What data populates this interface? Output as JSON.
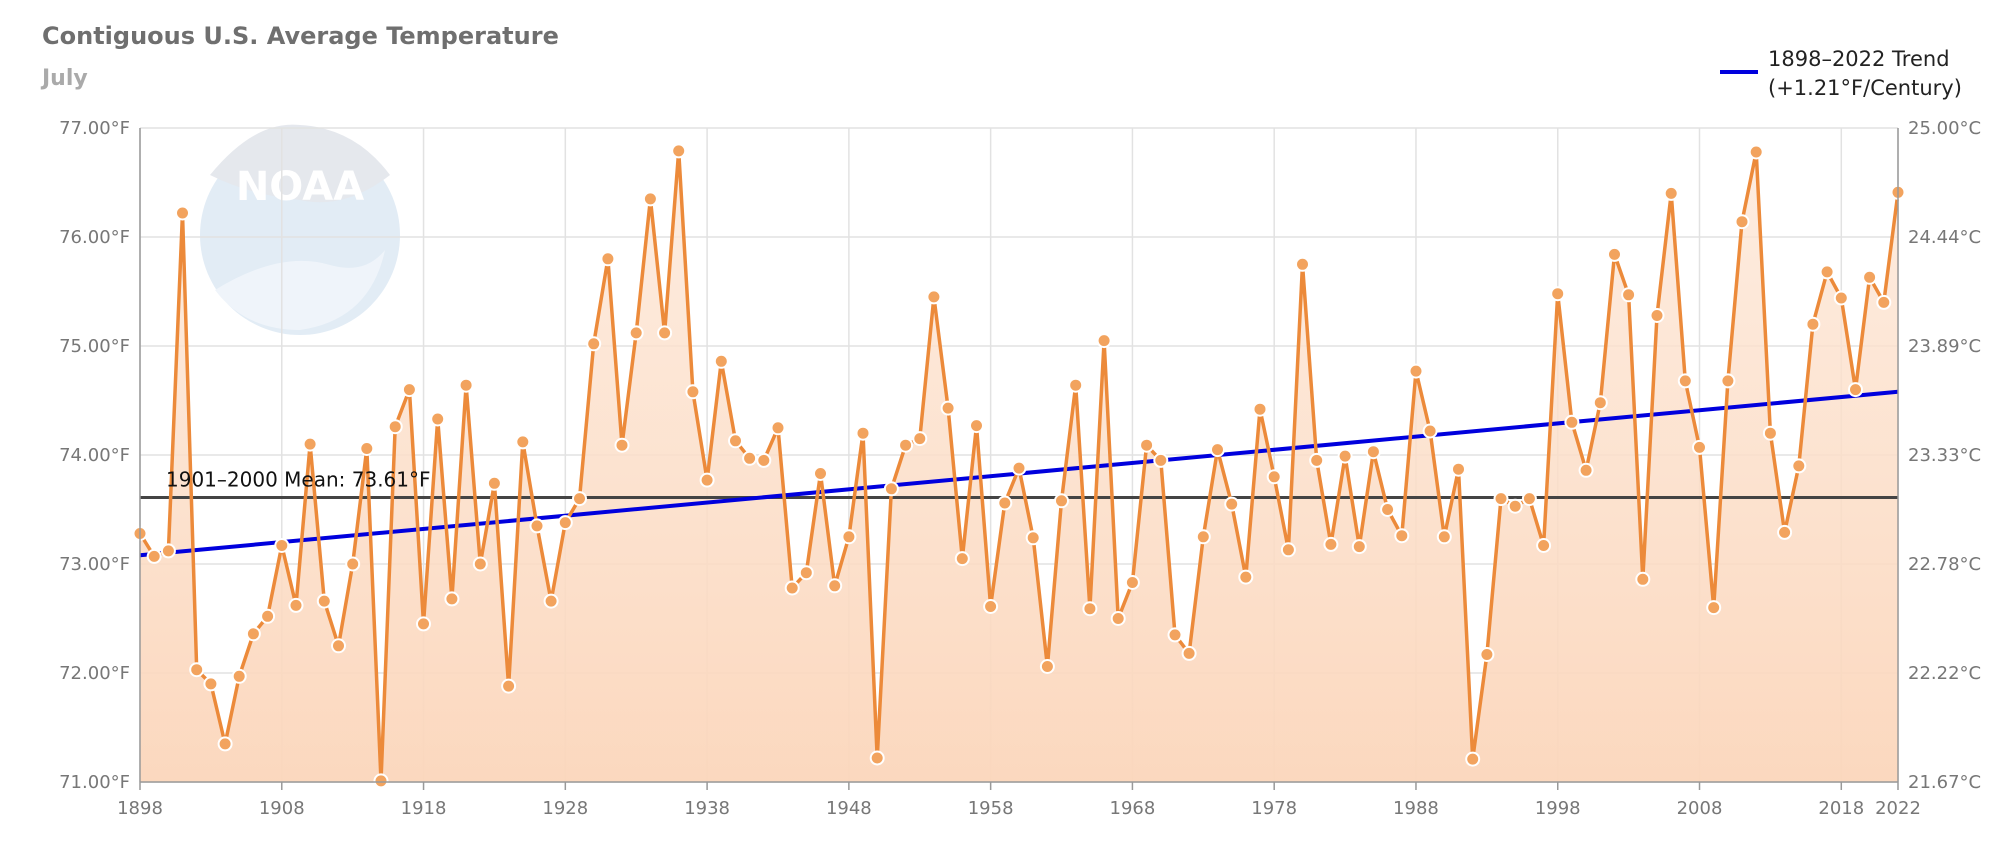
{
  "colors": {
    "series": "#ec8a3a",
    "point_fill": "#f2a35e",
    "area_top": "#fde6d5",
    "area_bottom": "#fbd6bb",
    "trend": "#0000dd",
    "mean": "#444444",
    "grid": "#e2e2e2",
    "axis_text": "#777777"
  },
  "logo": {
    "text": "NOAA"
  },
  "chart_data": {
    "type": "line",
    "title": "Contiguous U.S. Average Temperature",
    "subtitle": "July",
    "xlabel": "",
    "ylabel": "",
    "xlim": [
      1898,
      2022
    ],
    "ylim": [
      71,
      77
    ],
    "y_ticks": [
      "71.00°F",
      "72.00°F",
      "73.00°F",
      "74.00°F",
      "75.00°F",
      "76.00°F",
      "77.00°F"
    ],
    "y_ticks_right": [
      "21.67°C",
      "22.22°C",
      "22.78°C",
      "23.33°C",
      "23.89°C",
      "24.44°C",
      "25.00°C"
    ],
    "x_ticks": [
      "1898",
      "1908",
      "1918",
      "1928",
      "1938",
      "1948",
      "1958",
      "1968",
      "1978",
      "1988",
      "1998",
      "2008",
      "2018",
      "2022"
    ],
    "grid": true,
    "legend_position": "top-right",
    "legend": [
      "1898–2022 Trend",
      "(+1.21°F/Century)"
    ],
    "mean": {
      "label": "1901–2000 Mean: 73.61°F",
      "value": 73.61
    },
    "trend": {
      "name": "1898–2022 Trend",
      "start": [
        1898,
        73.08
      ],
      "end": [
        2022,
        74.58
      ]
    },
    "series": [
      {
        "x": [
          1898,
          1899,
          1900,
          1901,
          1902,
          1903,
          1904,
          1905,
          1906,
          1907,
          1908,
          1909,
          1910,
          1911,
          1912,
          1913,
          1914,
          1915,
          1916,
          1917,
          1918,
          1919,
          1920,
          1921,
          1922,
          1923,
          1924,
          1925,
          1926,
          1927,
          1928,
          1929,
          1930,
          1931,
          1932,
          1933,
          1934,
          1935,
          1936,
          1937,
          1938,
          1939,
          1940,
          1941,
          1942,
          1943,
          1944,
          1945,
          1946,
          1947,
          1948,
          1949,
          1950,
          1951,
          1952,
          1953,
          1954,
          1955,
          1956,
          1957,
          1958,
          1959,
          1960,
          1961,
          1962,
          1963,
          1964,
          1965,
          1966,
          1967,
          1968,
          1969,
          1970,
          1971,
          1972,
          1973,
          1974,
          1975,
          1976,
          1977,
          1978,
          1979,
          1980,
          1981,
          1982,
          1983,
          1984,
          1985,
          1986,
          1987,
          1988,
          1989,
          1990,
          1991,
          1992,
          1993,
          1994,
          1995,
          1996,
          1997,
          1998,
          1999,
          2000,
          2001,
          2002,
          2003,
          2004,
          2005,
          2006,
          2007,
          2008,
          2009,
          2010,
          2011,
          2012,
          2013,
          2014,
          2015,
          2016,
          2017,
          2018,
          2019,
          2020,
          2021,
          2022
        ],
        "y": [
          73.28,
          73.07,
          73.12,
          76.22,
          72.03,
          71.9,
          71.35,
          71.97,
          72.36,
          72.52,
          73.17,
          72.62,
          74.1,
          72.66,
          72.25,
          73.0,
          74.06,
          71.01,
          74.26,
          74.6,
          72.45,
          74.33,
          72.68,
          74.64,
          73.0,
          73.74,
          71.88,
          74.12,
          73.35,
          72.66,
          73.38,
          73.6,
          75.02,
          75.8,
          74.09,
          75.12,
          76.35,
          75.12,
          76.79,
          74.58,
          73.77,
          74.86,
          74.13,
          73.97,
          73.95,
          74.25,
          72.78,
          72.92,
          73.83,
          72.8,
          73.25,
          74.2,
          71.22,
          73.69,
          74.09,
          74.15,
          75.45,
          74.43,
          73.05,
          74.27,
          72.61,
          73.56,
          73.88,
          73.24,
          72.06,
          73.58,
          74.64,
          72.59,
          75.05,
          72.5,
          72.83,
          74.09,
          73.95,
          72.35,
          72.18,
          73.25,
          74.05,
          73.55,
          72.88,
          74.42,
          73.8,
          73.13,
          75.75,
          73.95,
          73.18,
          73.99,
          73.16,
          74.03,
          73.5,
          73.26,
          74.77,
          74.22,
          73.25,
          73.87,
          71.21,
          72.17,
          73.6,
          73.53,
          73.6,
          73.17,
          75.48,
          74.3,
          73.86,
          74.48,
          75.84,
          75.47,
          72.86,
          75.28,
          76.4,
          74.68,
          74.07,
          72.6,
          74.68,
          76.14,
          76.78,
          74.2,
          73.29,
          73.9,
          75.2,
          75.68,
          75.44,
          74.6,
          75.63,
          75.4,
          76.41
        ]
      }
    ]
  }
}
